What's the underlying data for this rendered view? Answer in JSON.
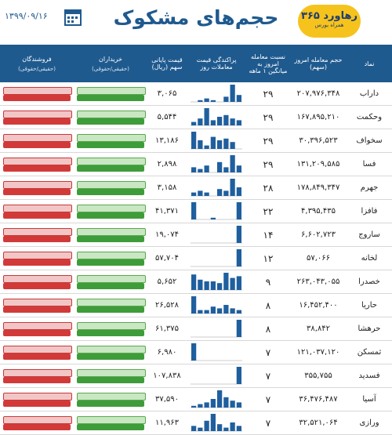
{
  "header": {
    "title": "حجم‌های مشکوک",
    "date": "۱۳۹۹/۰۹/۱۶",
    "logo_main": "رهاورد ۳۶۵",
    "logo_sub": "همراه بورس"
  },
  "table": {
    "columns": [
      "نماد",
      "حجم معامله امروز (سهم)",
      "نسبت معامله امروز به میانگین ۱ ماهه",
      "پراکندگی قیمت معاملات روز",
      "قیمت پایانی سهم (ریال)",
      "خریداران",
      "فروشندگان"
    ],
    "subcolumns": [
      "(حقیقی/حقوقی)",
      "(حقیقی/حقوقی)"
    ],
    "rows": [
      {
        "symbol": "داراب",
        "volume": "۲۰۷,۹۷۶,۳۴۸",
        "ratio": "۲۹",
        "price": "۳,۰۶۵",
        "spread": [
          0,
          1,
          2,
          1,
          0,
          3,
          10,
          4
        ]
      },
      {
        "symbol": "وحکمت",
        "volume": "۱۶۷,۸۹۵,۲۱۰",
        "ratio": "۲۹",
        "price": "۵,۵۴۴",
        "spread": [
          2,
          4,
          10,
          3,
          5,
          6,
          4,
          3
        ]
      },
      {
        "symbol": "سخواف",
        "volume": "۳۰,۳۹۶,۵۲۳",
        "ratio": "۲۹",
        "price": "۱۳,۱۸۶",
        "spread": [
          10,
          5,
          2,
          7,
          5,
          6,
          4,
          0
        ]
      },
      {
        "symbol": "فسا",
        "volume": "۱۳۱,۲۰۹,۵۸۵",
        "ratio": "۲۹",
        "price": "۲,۸۹۸",
        "spread": [
          3,
          2,
          4,
          0,
          6,
          3,
          10,
          4
        ]
      },
      {
        "symbol": "جهرم",
        "volume": "۱۷۸,۸۴۹,۳۴۷",
        "ratio": "۲۸",
        "price": "۳,۱۵۸",
        "spread": [
          2,
          3,
          2,
          0,
          4,
          3,
          10,
          5
        ]
      },
      {
        "symbol": "فافزا",
        "volume": "۴,۳۹۵,۴۳۵",
        "ratio": "۲۲",
        "price": "۴۱,۳۷۱",
        "spread": [
          10,
          0,
          0,
          1,
          0,
          0,
          0,
          10
        ]
      },
      {
        "symbol": "ساروج",
        "volume": "۶,۶۰۲,۷۲۳",
        "ratio": "۱۴",
        "price": "۱۹,۰۷۴",
        "spread": [
          0,
          0,
          0,
          0,
          0,
          0,
          0,
          10
        ]
      },
      {
        "symbol": "لخانه",
        "volume": "۵۷,۰۶۶",
        "ratio": "۱۲",
        "price": "۵۷,۷۰۴",
        "spread": [
          0,
          0,
          0,
          0,
          0,
          0,
          0,
          10
        ]
      },
      {
        "symbol": "خصدرا",
        "volume": "۲۶۳,۰۴۳,۰۵۵",
        "ratio": "۹",
        "price": "۵,۶۵۲",
        "spread": [
          9,
          6,
          5,
          5,
          4,
          10,
          7,
          8
        ]
      },
      {
        "symbol": "حاریا",
        "volume": "۱۶,۴۵۲,۴۰۰",
        "ratio": "۸",
        "price": "۲۶,۵۲۸",
        "spread": [
          10,
          2,
          2,
          4,
          3,
          5,
          3,
          2
        ]
      },
      {
        "symbol": "حرهشا",
        "volume": "۳۸,۸۴۲",
        "ratio": "۸",
        "price": "۶۱,۳۷۵",
        "spread": [
          0,
          0,
          0,
          0,
          0,
          0,
          0,
          10
        ]
      },
      {
        "symbol": "ثمسکن",
        "volume": "۱۲۱,۰۳۷,۱۲۰",
        "ratio": "۷",
        "price": "۶,۹۸۰",
        "spread": [
          10,
          0,
          0,
          0,
          0,
          0,
          0,
          0
        ]
      },
      {
        "symbol": "فسدید",
        "volume": "۳۵۵,۷۵۵",
        "ratio": "۷",
        "price": "۱۰۷,۸۳۸",
        "spread": [
          0,
          0,
          0,
          0,
          0,
          0,
          0,
          10
        ]
      },
      {
        "symbol": "آسیا",
        "volume": "۳۶,۴۷۶,۴۸۷",
        "ratio": "۷",
        "price": "۳۷,۵۹۰",
        "spread": [
          1,
          2,
          3,
          5,
          10,
          6,
          4,
          3
        ]
      },
      {
        "symbol": "ورازی",
        "volume": "۳۲,۵۲۱,۰۶۴",
        "ratio": "۷",
        "price": "۱۱,۹۶۳",
        "spread": [
          3,
          2,
          6,
          10,
          4,
          2,
          5,
          3
        ]
      }
    ]
  }
}
